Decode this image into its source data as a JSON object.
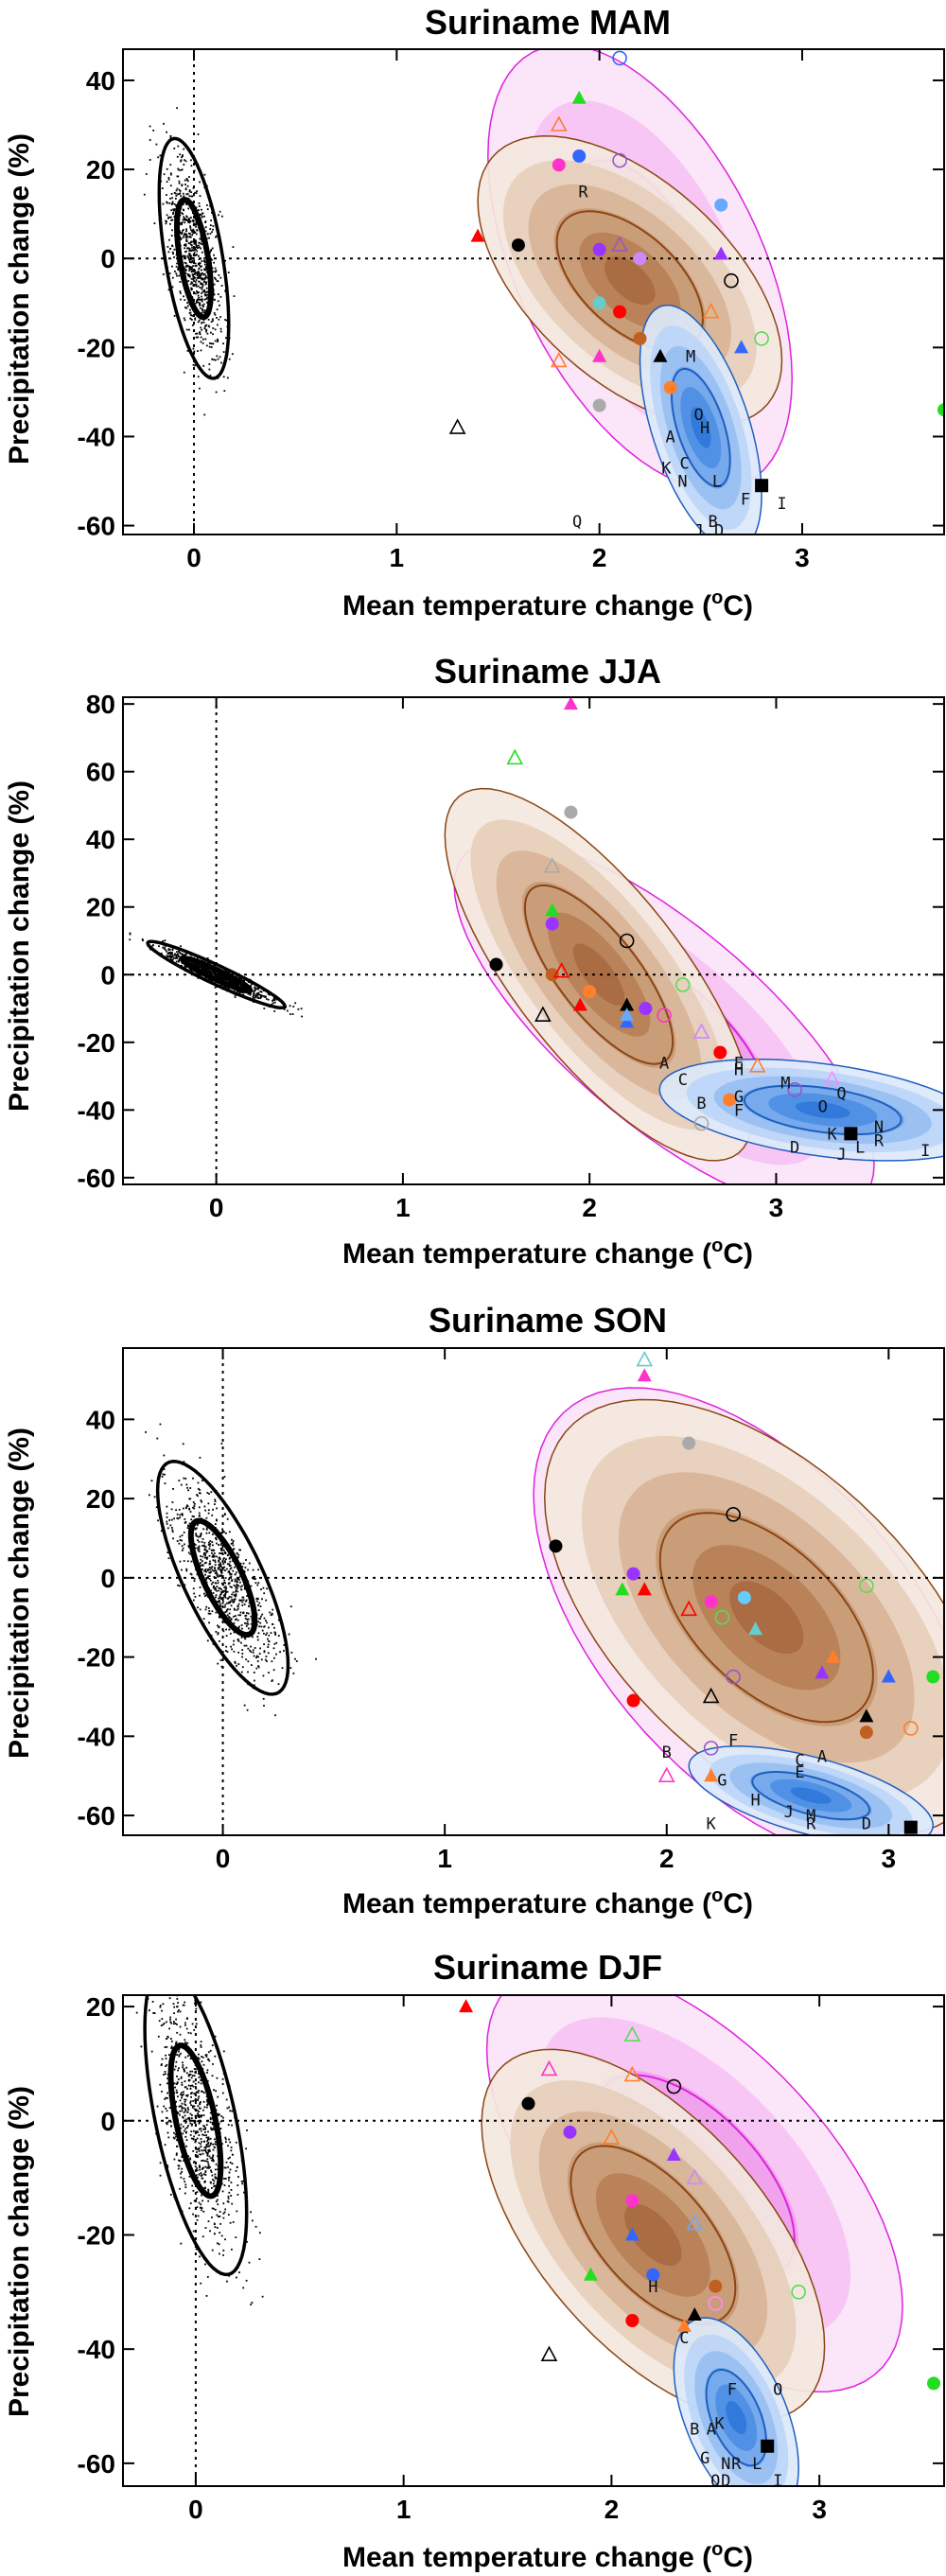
{
  "colors": {
    "brown_fill": [
      "#f3e8de",
      "#e6cfbb",
      "#d8b498",
      "#c99a76",
      "#b98057",
      "#a86a40"
    ],
    "brown_line": "#8b4513",
    "magenta_fill": [
      "#fbe3f9",
      "#f6c3f3",
      "#f09eec",
      "#ea7ae6"
    ],
    "magenta_line": "#dd22dd",
    "blue_fill": [
      "#dce9fb",
      "#bcd5f7",
      "#98bff2",
      "#73a8ec",
      "#4e8fe4",
      "#2f78da"
    ],
    "blue_line": "#1f5fbf"
  },
  "chart_data": [
    {
      "type": "scatter",
      "title": "Suriname MAM",
      "xlabel": "Mean temperature change (",
      "xlabel_unit": "o",
      "xlabel_suffix": "C)",
      "ylabel": "Precipitation change (%)",
      "xlim": [
        -0.35,
        3.7
      ],
      "ylim": [
        -62,
        47
      ],
      "xticks": [
        0,
        1,
        2,
        3
      ],
      "yticks": [
        -60,
        -40,
        -20,
        0,
        20,
        40
      ],
      "noise": {
        "cx": 0.0,
        "cy": 0,
        "sx": 0.07,
        "sy": 11,
        "rho": -0.55
      },
      "brown": {
        "cx": 2.15,
        "cy": -5,
        "sx": 0.3,
        "sy": 13,
        "rho": -0.55
      },
      "magenta": {
        "cx": 2.2,
        "cy": -2,
        "sx": 0.3,
        "sy": 20,
        "rho": -0.5
      },
      "blue": {
        "cx": 2.5,
        "cy": -38,
        "sx": 0.12,
        "sy": 11,
        "rho": -0.55
      },
      "points": [
        [
          1.6,
          3,
          "dot",
          "#000"
        ],
        [
          1.4,
          5,
          "tri",
          "#ff0000"
        ],
        [
          1.3,
          -38,
          "otri",
          "#000"
        ],
        [
          2.8,
          -51,
          "sq",
          "#000"
        ],
        [
          3.7,
          -34,
          "dot",
          "#22dd22"
        ],
        [
          2.1,
          45,
          "ocirc",
          "#3366ff"
        ],
        [
          1.9,
          36,
          "tri",
          "#22dd22"
        ],
        [
          1.8,
          30,
          "otri",
          "#ff7f2a"
        ],
        [
          1.9,
          23,
          "dot",
          "#3366ff"
        ],
        [
          1.8,
          21,
          "dot",
          "#ff33cc"
        ],
        [
          2.1,
          22,
          "ocirc",
          "#9955cc"
        ],
        [
          2.0,
          2,
          "dot",
          "#9933ff"
        ],
        [
          2.1,
          3,
          "otri",
          "#9955cc"
        ],
        [
          2.2,
          0,
          "dot",
          "#cc88ff"
        ],
        [
          2.6,
          1,
          "tri",
          "#9933ff"
        ],
        [
          2.65,
          -5,
          "ocirc",
          "#000"
        ],
        [
          2.1,
          -12,
          "dot",
          "#ff0000"
        ],
        [
          2.2,
          -18,
          "dot",
          "#c06020"
        ],
        [
          2.55,
          -12,
          "otri",
          "#ff7f2a"
        ],
        [
          2.7,
          -20,
          "tri",
          "#3366ff"
        ],
        [
          2.8,
          -18,
          "ocirc",
          "#55dd55"
        ],
        [
          2.0,
          -22,
          "tri",
          "#ff33cc"
        ],
        [
          1.8,
          -23,
          "otri",
          "#ff7f2a"
        ],
        [
          2.3,
          -22,
          "tri",
          "#000"
        ],
        [
          2.0,
          -33,
          "dot",
          "#aaaaaa"
        ],
        [
          2.35,
          -29,
          "dot",
          "#ff7f2a"
        ],
        [
          2.0,
          -10,
          "dot",
          "#66cccc"
        ],
        [
          2.6,
          12,
          "dot",
          "#66aaff"
        ]
      ],
      "letters": [
        [
          "R",
          1.92,
          15
        ],
        [
          "M",
          2.45,
          -22
        ],
        [
          "O",
          2.49,
          -35
        ],
        [
          "H",
          2.52,
          -38
        ],
        [
          "A",
          2.35,
          -40
        ],
        [
          "K",
          2.33,
          -47
        ],
        [
          "C",
          2.42,
          -46
        ],
        [
          "N",
          2.41,
          -50
        ],
        [
          "L",
          2.58,
          -50
        ],
        [
          "F",
          2.72,
          -54
        ],
        [
          "Q",
          1.89,
          -59
        ],
        [
          "J",
          2.49,
          -61
        ],
        [
          "B",
          2.56,
          -59
        ],
        [
          "D",
          2.59,
          -61
        ],
        [
          "I",
          2.9,
          -55
        ]
      ]
    },
    {
      "type": "scatter",
      "title": "Suriname JJA",
      "xlabel": "Mean temperature change (",
      "xlabel_unit": "o",
      "xlabel_suffix": "C)",
      "ylabel": "Precipitation change (%)",
      "xlim": [
        -0.5,
        3.9
      ],
      "ylim": [
        -62,
        82
      ],
      "xticks": [
        0,
        1,
        2,
        3
      ],
      "yticks": [
        -60,
        -40,
        -20,
        0,
        20,
        40,
        60,
        80
      ],
      "noise": {
        "cx": 0.0,
        "cy": 0,
        "sx": 0.15,
        "sy": 4,
        "rho": -0.95
      },
      "brown": {
        "cx": 2.05,
        "cy": 0,
        "sx": 0.33,
        "sy": 22,
        "rho": -0.75
      },
      "magenta": {
        "cx": 2.4,
        "cy": -15,
        "sx": 0.45,
        "sy": 22,
        "rho": -0.75
      },
      "blue": {
        "cx": 3.25,
        "cy": -40,
        "sx": 0.35,
        "sy": 6,
        "rho": -0.4
      },
      "points": [
        [
          1.9,
          80,
          "tri",
          "#ff33cc"
        ],
        [
          1.6,
          64,
          "otri",
          "#22dd22"
        ],
        [
          1.9,
          48,
          "dot",
          "#aaaaaa"
        ],
        [
          1.8,
          32,
          "otri",
          "#aaaaaa"
        ],
        [
          1.8,
          19,
          "tri",
          "#22dd22"
        ],
        [
          1.8,
          15,
          "dot",
          "#9933ff"
        ],
        [
          1.5,
          3,
          "dot",
          "#000"
        ],
        [
          2.2,
          10,
          "ocirc",
          "#000"
        ],
        [
          1.8,
          0,
          "dot",
          "#c06020"
        ],
        [
          1.85,
          1,
          "otri",
          "#ff0000"
        ],
        [
          2.2,
          -9,
          "tri",
          "#000"
        ],
        [
          2.3,
          -10,
          "dot",
          "#9933ff"
        ],
        [
          2.5,
          -3,
          "ocirc",
          "#55dd55"
        ],
        [
          2.7,
          -23,
          "dot",
          "#ff0000"
        ],
        [
          1.75,
          -12,
          "otri",
          "#000"
        ],
        [
          1.95,
          -9,
          "tri",
          "#ff0000"
        ],
        [
          2.2,
          -14,
          "tri",
          "#3366ff"
        ],
        [
          2.4,
          -12,
          "ocirc",
          "#ff33cc"
        ],
        [
          2.6,
          -17,
          "otri",
          "#cc88ff"
        ],
        [
          2.9,
          -27,
          "otri",
          "#ff7f2a"
        ],
        [
          3.3,
          -31,
          "otri",
          "#ff88ff"
        ],
        [
          3.1,
          -34,
          "ocirc",
          "#9955cc"
        ],
        [
          2.75,
          -37,
          "dot",
          "#ff7f2a"
        ],
        [
          3.4,
          -47,
          "sq",
          "#000"
        ],
        [
          2.6,
          -44,
          "ocirc",
          "#aaaaaa"
        ],
        [
          2.0,
          -5,
          "dot",
          "#ff7f2a"
        ],
        [
          2.2,
          -12,
          "tri",
          "#66aaff"
        ]
      ],
      "letters": [
        [
          "A",
          2.4,
          -26
        ],
        [
          "C",
          2.5,
          -31
        ],
        [
          "E",
          2.8,
          -26
        ],
        [
          "H",
          2.8,
          -28
        ],
        [
          "M",
          3.05,
          -32
        ],
        [
          "G",
          2.8,
          -36
        ],
        [
          "F",
          2.8,
          -40
        ],
        [
          "O",
          3.25,
          -39
        ],
        [
          "Q",
          3.35,
          -35
        ],
        [
          "B",
          2.6,
          -38
        ],
        [
          "K",
          3.3,
          -47
        ],
        [
          "N",
          3.55,
          -45
        ],
        [
          "R",
          3.55,
          -49
        ],
        [
          "D",
          3.1,
          -51
        ],
        [
          "L",
          3.45,
          -51
        ],
        [
          "J",
          3.35,
          -53
        ],
        [
          "I",
          3.8,
          -52
        ]
      ]
    },
    {
      "type": "scatter",
      "title": "Suriname SON",
      "xlabel": "Mean temperature change (",
      "xlabel_unit": "o",
      "xlabel_suffix": "C)",
      "ylabel": "Precipitation change (%)",
      "xlim": [
        -0.45,
        3.25
      ],
      "ylim": [
        -65,
        58
      ],
      "xticks": [
        0,
        1,
        2,
        3
      ],
      "yticks": [
        -60,
        -40,
        -20,
        0,
        20,
        40
      ],
      "noise": {
        "cx": 0.0,
        "cy": 0,
        "sx": 0.12,
        "sy": 12,
        "rho": -0.75
      },
      "brown": {
        "cx": 2.45,
        "cy": -10,
        "sx": 0.4,
        "sy": 22,
        "rho": -0.55
      },
      "magenta": {
        "cx": 2.4,
        "cy": -12,
        "sx": 0.4,
        "sy": 24,
        "rho": -0.55
      },
      "blue": {
        "cx": 2.65,
        "cy": -55,
        "sx": 0.22,
        "sy": 5,
        "rho": -0.6
      },
      "points": [
        [
          1.9,
          55,
          "otri",
          "#66cccc"
        ],
        [
          1.9,
          51,
          "tri",
          "#ff33cc"
        ],
        [
          2.1,
          34,
          "dot",
          "#aaaaaa"
        ],
        [
          2.3,
          16,
          "ocirc",
          "#000"
        ],
        [
          1.5,
          8,
          "dot",
          "#000"
        ],
        [
          1.85,
          1,
          "dot",
          "#9933ff"
        ],
        [
          1.8,
          -3,
          "tri",
          "#22dd22"
        ],
        [
          1.9,
          -3,
          "tri",
          "#ff0000"
        ],
        [
          2.2,
          -6,
          "dot",
          "#ff33cc"
        ],
        [
          2.35,
          -5,
          "dot",
          "#66ccff"
        ],
        [
          2.9,
          -2,
          "ocirc",
          "#55dd55"
        ],
        [
          2.25,
          -10,
          "ocirc",
          "#55dd55"
        ],
        [
          2.4,
          -13,
          "tri",
          "#66cccc"
        ],
        [
          2.75,
          -20,
          "tri",
          "#ff7f2a"
        ],
        [
          3.2,
          -25,
          "dot",
          "#22dd22"
        ],
        [
          3.0,
          -25,
          "tri",
          "#3366ff"
        ],
        [
          2.7,
          -24,
          "tri",
          "#9933ff"
        ],
        [
          2.3,
          -25,
          "ocirc",
          "#9955cc"
        ],
        [
          1.85,
          -31,
          "dot",
          "#ff0000"
        ],
        [
          2.9,
          -35,
          "tri",
          "#000"
        ],
        [
          2.9,
          -39,
          "dot",
          "#c06020"
        ],
        [
          3.1,
          -38,
          "ocirc",
          "#ff7f2a"
        ],
        [
          2.2,
          -30,
          "otri",
          "#000"
        ],
        [
          2.0,
          -50,
          "otri",
          "#ff33cc"
        ],
        [
          2.2,
          -43,
          "ocirc",
          "#9955cc"
        ],
        [
          2.2,
          -50,
          "tri",
          "#ff7f2a"
        ],
        [
          2.1,
          -8,
          "otri",
          "#ff0000"
        ],
        [
          3.1,
          -63,
          "sq",
          "#000"
        ]
      ],
      "letters": [
        [
          "B",
          2.0,
          -44
        ],
        [
          "F",
          2.3,
          -41
        ],
        [
          "A",
          2.7,
          -45
        ],
        [
          "C",
          2.6,
          -46
        ],
        [
          "E",
          2.6,
          -49
        ],
        [
          "G",
          2.25,
          -51
        ],
        [
          "H",
          2.4,
          -56
        ],
        [
          "J",
          2.55,
          -59
        ],
        [
          "M",
          2.65,
          -60
        ],
        [
          "R",
          2.65,
          -62
        ],
        [
          "D",
          2.9,
          -62
        ],
        [
          "K",
          2.2,
          -62
        ]
      ]
    },
    {
      "type": "scatter",
      "title": "Suriname DJF",
      "xlabel": "Mean temperature change (",
      "xlabel_unit": "o",
      "xlabel_suffix": "C)",
      "ylabel": "Precipitation change (%)",
      "xlim": [
        -0.35,
        3.6
      ],
      "ylim": [
        -64,
        22
      ],
      "xticks": [
        0,
        1,
        2,
        3
      ],
      "yticks": [
        -60,
        -40,
        -20,
        0,
        20
      ],
      "noise": {
        "cx": 0.0,
        "cy": 0,
        "sx": 0.1,
        "sy": 11,
        "rho": -0.6
      },
      "brown": {
        "cx": 2.2,
        "cy": -20,
        "sx": 0.33,
        "sy": 13,
        "rho": -0.6
      },
      "magenta": {
        "cx": 2.4,
        "cy": -10,
        "sx": 0.4,
        "sy": 15,
        "rho": -0.6
      },
      "blue": {
        "cx": 2.6,
        "cy": -52,
        "sx": 0.12,
        "sy": 7,
        "rho": -0.5
      },
      "points": [
        [
          1.3,
          20,
          "tri",
          "#ff0000"
        ],
        [
          2.1,
          15,
          "otri",
          "#55dd55"
        ],
        [
          1.6,
          3,
          "dot",
          "#000"
        ],
        [
          2.3,
          6,
          "ocirc",
          "#000"
        ],
        [
          1.7,
          9,
          "otri",
          "#ff33cc"
        ],
        [
          2.1,
          8,
          "otri",
          "#ff7f2a"
        ],
        [
          1.8,
          -2,
          "dot",
          "#9933ff"
        ],
        [
          2.0,
          -3,
          "otri",
          "#ff7f2a"
        ],
        [
          2.3,
          -6,
          "tri",
          "#9933ff"
        ],
        [
          2.4,
          -10,
          "otri",
          "#cc88ff"
        ],
        [
          2.1,
          -14,
          "dot",
          "#ff33cc"
        ],
        [
          2.4,
          -18,
          "otri",
          "#66aaff"
        ],
        [
          2.1,
          -20,
          "tri",
          "#3366ff"
        ],
        [
          2.2,
          -27,
          "dot",
          "#3366ff"
        ],
        [
          1.9,
          -27,
          "tri",
          "#22dd22"
        ],
        [
          2.5,
          -29,
          "dot",
          "#c06020"
        ],
        [
          2.9,
          -30,
          "ocirc",
          "#55dd55"
        ],
        [
          2.4,
          -34,
          "tri",
          "#000"
        ],
        [
          2.1,
          -35,
          "dot",
          "#ff0000"
        ],
        [
          2.35,
          -36,
          "tri",
          "#ff7f2a"
        ],
        [
          1.7,
          -41,
          "otri",
          "#000"
        ],
        [
          2.75,
          -57,
          "sq",
          "#000"
        ],
        [
          3.55,
          -46,
          "dot",
          "#22dd22"
        ],
        [
          2.5,
          -32,
          "ocirc",
          "#ff88ff"
        ]
      ],
      "letters": [
        [
          "H",
          2.2,
          -29
        ],
        [
          "C",
          2.35,
          -38
        ],
        [
          "F",
          2.58,
          -47
        ],
        [
          "K",
          2.52,
          -53
        ],
        [
          "A",
          2.48,
          -54
        ],
        [
          "B",
          2.4,
          -54
        ],
        [
          "G",
          2.45,
          -59
        ],
        [
          "N",
          2.55,
          -60
        ],
        [
          "R",
          2.6,
          -60
        ],
        [
          "L",
          2.7,
          -60
        ],
        [
          "D",
          2.55,
          -63
        ],
        [
          "Q",
          2.5,
          -63
        ],
        [
          "O",
          2.8,
          -47
        ],
        [
          "I",
          2.8,
          -63
        ]
      ]
    }
  ]
}
